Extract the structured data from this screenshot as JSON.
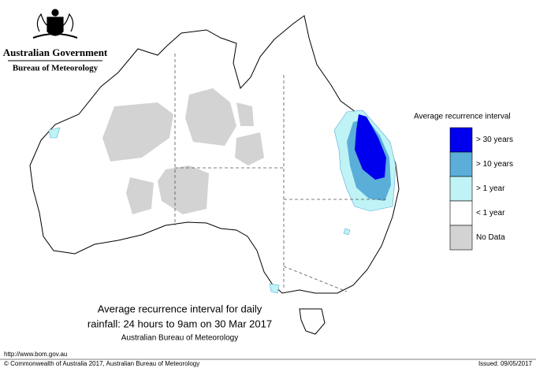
{
  "header": {
    "title": "Australian Government",
    "subtitle": "Bureau of Meteorology"
  },
  "legend": {
    "title": "Average recurrence interval",
    "items": [
      {
        "label": "> 30 years",
        "color": "#0000ee"
      },
      {
        "label": "> 10 years",
        "color": "#5aaed8"
      },
      {
        "label": "> 1 year",
        "color": "#bff3f5"
      },
      {
        "label": "< 1 year",
        "color": "#ffffff"
      },
      {
        "label": "No Data",
        "color": "#d3d3d3"
      }
    ]
  },
  "caption": {
    "lines": [
      "Average recurrence interval for daily",
      "rainfall: 24 hours to 9am on 30 Mar 2017"
    ],
    "source": "Australian Bureau of Meteorology"
  },
  "footer": {
    "url": "http://www.bom.gov.au",
    "copyright": "© Commonwealth of Australia 2017, Australian Bureau of Meteorology",
    "issued": "Issued: 09/05/2017"
  }
}
